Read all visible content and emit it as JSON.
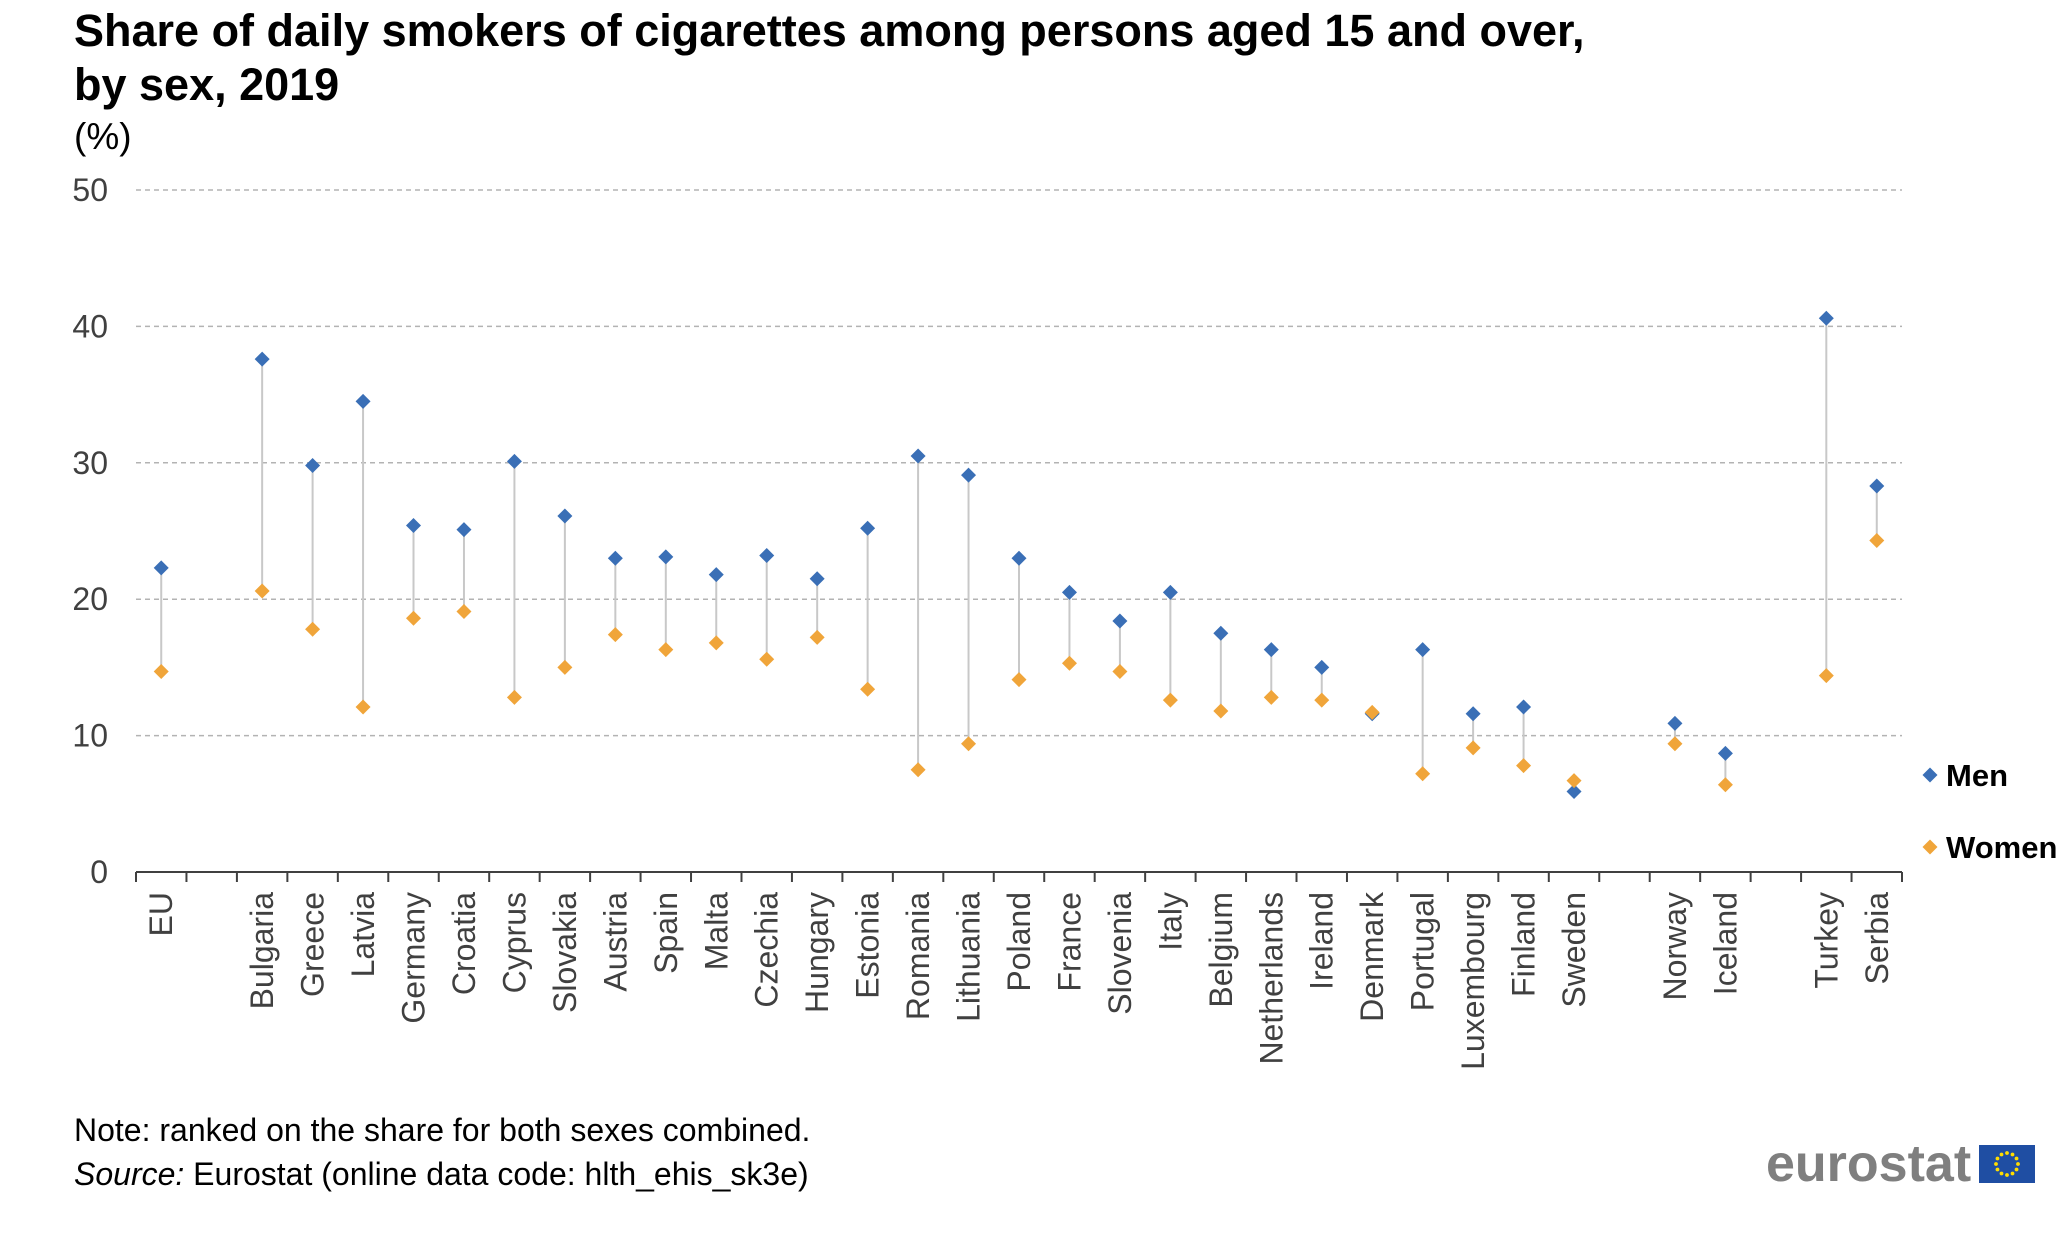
{
  "title": "Share of daily smokers of cigarettes among persons aged 15 and over, by sex, 2019",
  "unit_label": "(%)",
  "note": "Note: ranked on the share for both sexes combined.",
  "source_label": "Source:",
  "source_text": " Eurostat (online data code: hlth_ehis_sk3e)",
  "logo_text": "eurostat",
  "colors": {
    "men": "#3a6fb6",
    "women": "#f0a53a",
    "grid": "#b3b3b3",
    "connector": "#c8c8c8",
    "axis": "#404040"
  },
  "chart_data": {
    "type": "scatter",
    "title": "Share of daily smokers of cigarettes among persons aged 15 and over, by sex, 2019",
    "ylabel": "(%)",
    "ylim": [
      0,
      50
    ],
    "yticks": [
      0,
      10,
      20,
      30,
      40,
      50
    ],
    "grid": true,
    "legend_position": "right",
    "categories": [
      "EU",
      "",
      "Bulgaria",
      "Greece",
      "Latvia",
      "Germany",
      "Croatia",
      "Cyprus",
      "Slovakia",
      "Austria",
      "Spain",
      "Malta",
      "Czechia",
      "Hungary",
      "Estonia",
      "Romania",
      "Lithuania",
      "Poland",
      "France",
      "Slovenia",
      "Italy",
      "Belgium",
      "Netherlands",
      "Ireland",
      "Denmark",
      "Portugal",
      "Luxembourg",
      "Finland",
      "Sweden",
      "",
      "Norway",
      "Iceland",
      "",
      "Turkey",
      "Serbia"
    ],
    "series": [
      {
        "name": "Men",
        "values": [
          22.3,
          null,
          37.6,
          29.8,
          34.5,
          25.4,
          25.1,
          30.1,
          26.1,
          23.0,
          23.1,
          21.8,
          23.2,
          21.5,
          25.2,
          30.5,
          29.1,
          23.0,
          20.5,
          18.4,
          20.5,
          17.5,
          16.3,
          15.0,
          11.6,
          16.3,
          11.6,
          12.1,
          5.9,
          null,
          10.9,
          8.7,
          null,
          40.6,
          28.3
        ]
      },
      {
        "name": "Women",
        "values": [
          14.7,
          null,
          20.6,
          17.8,
          12.1,
          18.6,
          19.1,
          12.8,
          15.0,
          17.4,
          16.3,
          16.8,
          15.6,
          17.2,
          13.4,
          7.5,
          9.4,
          14.1,
          15.3,
          14.7,
          12.6,
          11.8,
          12.8,
          12.6,
          11.7,
          7.2,
          9.1,
          7.8,
          6.7,
          null,
          9.4,
          6.4,
          null,
          14.4,
          24.3
        ]
      }
    ]
  }
}
